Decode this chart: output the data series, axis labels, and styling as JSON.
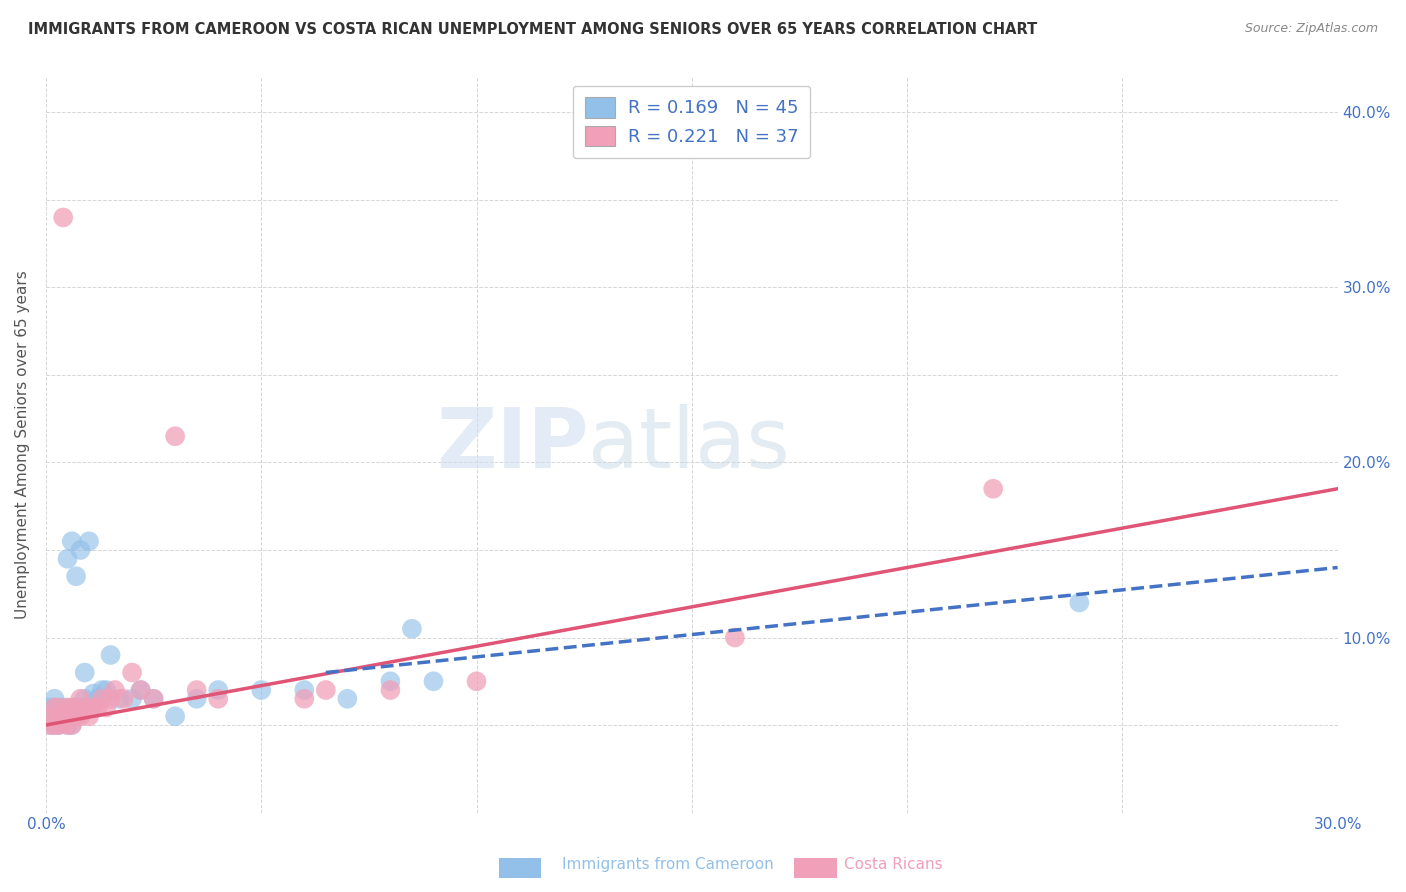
{
  "title": "IMMIGRANTS FROM CAMEROON VS COSTA RICAN UNEMPLOYMENT AMONG SENIORS OVER 65 YEARS CORRELATION CHART",
  "source": "Source: ZipAtlas.com",
  "ylabel": "Unemployment Among Seniors over 65 years",
  "xlim": [
    0.0,
    0.3
  ],
  "ylim": [
    0.0,
    0.42
  ],
  "x_ticks": [
    0.0,
    0.05,
    0.1,
    0.15,
    0.2,
    0.25,
    0.3
  ],
  "y_ticks": [
    0.0,
    0.05,
    0.1,
    0.15,
    0.2,
    0.25,
    0.3,
    0.35,
    0.4
  ],
  "blue_color": "#92c0e8",
  "pink_color": "#f0a0b8",
  "blue_line_color": "#4472c4",
  "pink_line_color": "#e05575",
  "legend_blue_label_r": "R = 0.169",
  "legend_blue_label_n": "N = 45",
  "legend_pink_label_r": "R = 0.221",
  "legend_pink_label_n": "N = 37",
  "legend_text_color": "#4472c4",
  "watermark_zip": "ZIP",
  "watermark_atlas": "atlas",
  "footer_blue": "Immigrants from Cameroon",
  "footer_pink": "Costa Ricans",
  "blue_scatter_x": [
    0.001,
    0.001,
    0.001,
    0.002,
    0.002,
    0.002,
    0.003,
    0.003,
    0.003,
    0.004,
    0.004,
    0.005,
    0.005,
    0.005,
    0.006,
    0.006,
    0.006,
    0.007,
    0.007,
    0.007,
    0.008,
    0.008,
    0.009,
    0.009,
    0.01,
    0.01,
    0.011,
    0.012,
    0.013,
    0.014,
    0.015,
    0.017,
    0.02,
    0.022,
    0.025,
    0.03,
    0.035,
    0.04,
    0.05,
    0.06,
    0.07,
    0.08,
    0.085,
    0.09,
    0.24
  ],
  "blue_scatter_y": [
    0.05,
    0.055,
    0.06,
    0.05,
    0.06,
    0.065,
    0.05,
    0.055,
    0.06,
    0.055,
    0.06,
    0.05,
    0.055,
    0.145,
    0.05,
    0.06,
    0.155,
    0.055,
    0.06,
    0.135,
    0.06,
    0.15,
    0.065,
    0.08,
    0.06,
    0.155,
    0.068,
    0.065,
    0.07,
    0.07,
    0.09,
    0.065,
    0.065,
    0.07,
    0.065,
    0.055,
    0.065,
    0.07,
    0.07,
    0.07,
    0.065,
    0.075,
    0.105,
    0.075,
    0.12
  ],
  "pink_scatter_x": [
    0.001,
    0.001,
    0.002,
    0.002,
    0.003,
    0.003,
    0.004,
    0.004,
    0.005,
    0.005,
    0.006,
    0.006,
    0.007,
    0.007,
    0.008,
    0.008,
    0.009,
    0.01,
    0.011,
    0.012,
    0.013,
    0.014,
    0.015,
    0.016,
    0.018,
    0.02,
    0.022,
    0.025,
    0.03,
    0.035,
    0.04,
    0.06,
    0.065,
    0.08,
    0.1,
    0.16,
    0.22
  ],
  "pink_scatter_y": [
    0.05,
    0.055,
    0.05,
    0.06,
    0.05,
    0.06,
    0.055,
    0.34,
    0.05,
    0.06,
    0.05,
    0.06,
    0.055,
    0.06,
    0.055,
    0.065,
    0.06,
    0.055,
    0.06,
    0.06,
    0.065,
    0.06,
    0.065,
    0.07,
    0.065,
    0.08,
    0.07,
    0.065,
    0.215,
    0.07,
    0.065,
    0.065,
    0.07,
    0.07,
    0.075,
    0.1,
    0.185
  ],
  "blue_trend_x": [
    0.065,
    0.3
  ],
  "blue_trend_y": [
    0.08,
    0.14
  ],
  "pink_trend_x": [
    0.0,
    0.3
  ],
  "pink_trend_y": [
    0.05,
    0.185
  ]
}
